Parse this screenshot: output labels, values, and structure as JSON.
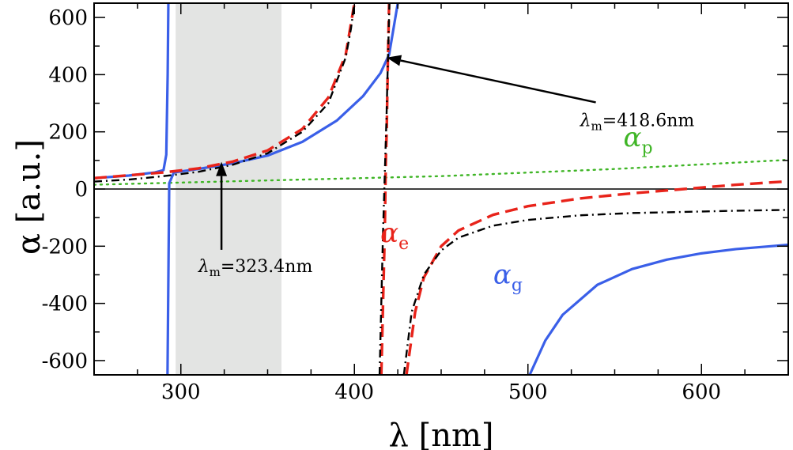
{
  "chart_data": {
    "type": "line",
    "title": "",
    "xlabel": "λ [nm]",
    "ylabel": "α [a.u.]",
    "xlim": [
      250,
      650
    ],
    "ylim": [
      -650,
      650
    ],
    "xticks": [
      300,
      400,
      500,
      600
    ],
    "yticks": [
      -600,
      -400,
      -200,
      0,
      200,
      400,
      600
    ],
    "xtick_labels": [
      "300",
      "400",
      "500",
      "600"
    ],
    "ytick_labels": [
      "-600",
      "-400",
      "-200",
      "0",
      "200",
      "400",
      "600"
    ],
    "grid": false,
    "shaded_region": {
      "x_from": 297,
      "x_to": 358,
      "color": "#e3e4e3"
    },
    "series": [
      {
        "name": "alpha_g",
        "label_main": "α",
        "label_sub": "g",
        "color": "#3a5fe8",
        "style": "solid",
        "segments": [
          {
            "x": [
              250,
              270,
              285,
              290,
              291.6,
              292.4,
              292.8
            ],
            "y": [
              38,
              47,
              58,
              66,
              120,
              400,
              650
            ]
          },
          {
            "x": [
              292.3,
              293.3,
              296,
              310,
              330,
              350,
              370,
              390,
              405,
              415,
              420,
              425
            ],
            "y": [
              -650,
              20,
              58,
              70,
              90,
              117,
              165,
              240,
              325,
              405,
              470,
              650
            ]
          },
          {
            "x": [
              501,
              510,
              520,
              540,
              560,
              580,
              600,
              620,
              640,
              650
            ],
            "y": [
              -650,
              -530,
              -440,
              -335,
              -280,
              -247,
              -225,
              -210,
              -200,
              -195
            ]
          }
        ]
      },
      {
        "name": "alpha_e",
        "label_main": "α",
        "label_sub": "e",
        "color": "#e8231a",
        "style": "dashed",
        "segments": [
          {
            "x": [
              250,
              270,
              290,
              310,
              330,
              350,
              370,
              385,
              395,
              400
            ],
            "y": [
              38,
              48,
              58,
              72,
              96,
              135,
              210,
              320,
              470,
              650
            ]
          },
          {
            "x": [
              415.5,
              416.5,
              417.5,
              418.1,
              418.6,
              419.3,
              420
            ],
            "y": [
              -650,
              -400,
              -150,
              100,
              200,
              450,
              650
            ]
          },
          {
            "x": [
              430,
              435,
              440,
              450,
              460,
              480,
              500,
              530,
              560,
              590,
              620,
              650
            ],
            "y": [
              -650,
              -430,
              -310,
              -200,
              -145,
              -90,
              -60,
              -33,
              -15,
              0,
              15,
              27
            ]
          }
        ]
      },
      {
        "name": "alpha_total",
        "label_main": "",
        "label_sub": "",
        "color": "#000000",
        "style": "dashdot",
        "segments": [
          {
            "x": [
              250,
              270,
              290,
              310,
              330,
              350,
              370,
              385,
              395,
              398,
              400
            ],
            "y": [
              26,
              33,
              45,
              60,
              85,
              125,
              200,
              300,
              460,
              560,
              650
            ]
          },
          {
            "x": [
              414.5,
              415.5,
              416.5,
              417.5,
              418.5,
              419.3,
              420.2
            ],
            "y": [
              -650,
              -400,
              -150,
              50,
              250,
              450,
              650
            ]
          },
          {
            "x": [
              428.5,
              433,
              440,
              450,
              460,
              480,
              500,
              530,
              560,
              590,
              620,
              650
            ],
            "y": [
              -650,
              -430,
              -300,
              -215,
              -170,
              -128,
              -108,
              -92,
              -84,
              -80,
              -76,
              -73
            ]
          }
        ]
      },
      {
        "name": "alpha_p",
        "label_main": "α",
        "label_sub": "p",
        "color": "#3fb526",
        "style": "dotted",
        "segments": [
          {
            "x": [
              250,
              350,
              450,
              550,
              650
            ],
            "y": [
              15,
              30,
              45,
              70,
              102
            ]
          }
        ]
      }
    ],
    "zero_line": 0,
    "annotations": [
      {
        "name": "lambda-m-418",
        "text_main": "λ",
        "text_sub": "m",
        "text_value": "=418.6nm",
        "arrow_to": [
          418.6,
          460
        ],
        "text_at": [
          530,
          220
        ]
      },
      {
        "name": "lambda-m-323",
        "text_main": "λ",
        "text_sub": "m",
        "text_value": "=323.4nm",
        "arrow_to": [
          323.4,
          95
        ],
        "text_at": [
          310,
          -290
        ]
      }
    ],
    "series_labels": [
      {
        "series": "alpha_p",
        "at": [
          555,
          150
        ]
      },
      {
        "series": "alpha_e",
        "at": [
          415,
          -185
        ]
      },
      {
        "series": "alpha_g",
        "at": [
          480,
          -330
        ]
      }
    ]
  }
}
